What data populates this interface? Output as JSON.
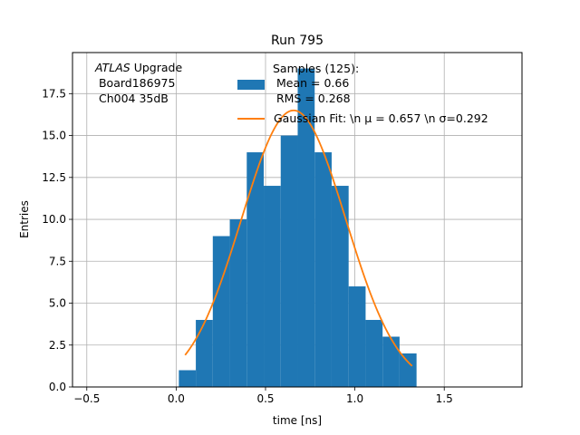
{
  "chart_data": {
    "type": "bar",
    "title": "Run 795",
    "xlabel": "time [ns]",
    "ylabel": "Entries",
    "xlim": [
      -0.58,
      1.935
    ],
    "ylim": [
      0,
      19.95
    ],
    "xticks": [
      -0.5,
      0.0,
      0.5,
      1.0,
      1.5
    ],
    "xtick_labels": [
      "−0.5",
      "0.0",
      "0.5",
      "1.0",
      "1.5"
    ],
    "yticks": [
      0.0,
      2.5,
      5.0,
      7.5,
      10.0,
      12.5,
      15.0,
      17.5
    ],
    "ytick_labels": [
      "0.0",
      "2.5",
      "5.0",
      "7.5",
      "10.0",
      "12.5",
      "15.0",
      "17.5"
    ],
    "grid": true,
    "histogram": {
      "bin_edges": [
        0.015,
        0.11,
        0.205,
        0.3,
        0.395,
        0.49,
        0.585,
        0.68,
        0.775,
        0.87,
        0.965,
        1.06,
        1.155,
        1.25,
        1.345
      ],
      "counts": [
        1,
        4,
        9,
        10,
        14,
        12,
        15,
        19,
        14,
        12,
        6,
        4,
        3,
        2
      ],
      "color": "#1f77b4"
    },
    "fit_curve": {
      "type": "gaussian",
      "mu": 0.657,
      "sigma": 0.292,
      "amplitude": 16.5,
      "x_range": [
        0.05,
        1.32
      ],
      "color": "#ff7f0e"
    },
    "annotation": {
      "italic_part": "ATLAS",
      "rest_first_line": " Upgrade",
      "lines": [
        " Board186975",
        " Ch004 35dB"
      ]
    },
    "legend": {
      "position": "top-right",
      "entries": [
        {
          "kind": "patch",
          "color": "#1f77b4",
          "lines": [
            "Samples (125):",
            " Mean = 0.66",
            " RMS = 0.268"
          ]
        },
        {
          "kind": "line",
          "color": "#ff7f0e",
          "text": "Gaussian Fit: \\n μ = 0.657 \\n σ=0.292"
        }
      ]
    }
  }
}
